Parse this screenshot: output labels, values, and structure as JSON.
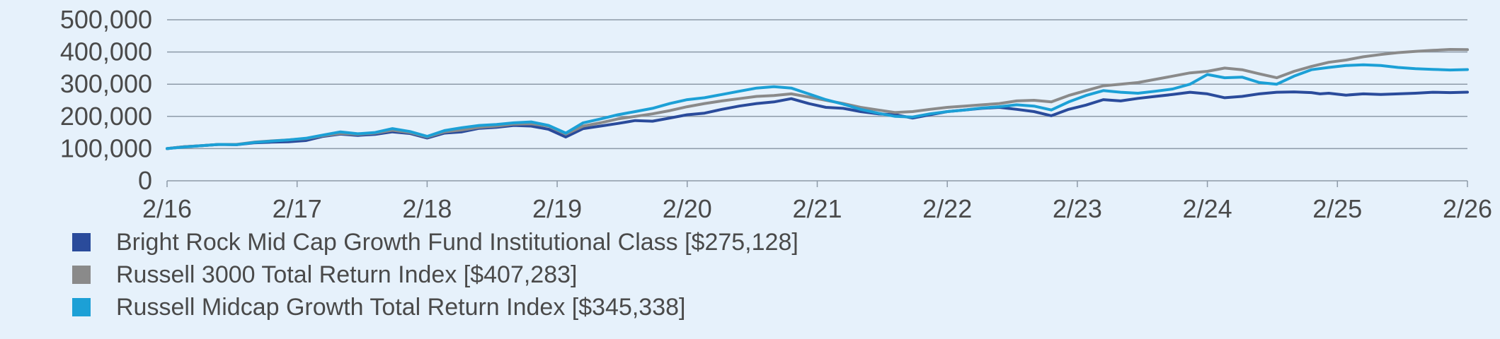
{
  "chart_data": {
    "type": "line",
    "ylim": [
      0,
      500000
    ],
    "y_ticks": [
      "0",
      "100,000",
      "200,000",
      "300,000",
      "400,000",
      "500,000"
    ],
    "y_tick_values": [
      0,
      100000,
      200000,
      300000,
      400000,
      500000
    ],
    "x_ticks": [
      "2/16",
      "2/17",
      "2/18",
      "2/19",
      "2/20",
      "2/21",
      "2/22",
      "2/23",
      "2/24",
      "2/25",
      "2/26"
    ],
    "grid": true,
    "legend_position": "bottom-left",
    "series": [
      {
        "name": "Bright Rock Mid Cap Growth Fund Institutional Class [$275,128]",
        "color": "#2a4b9b",
        "points": [
          [
            0,
            100000
          ],
          [
            4,
            106000
          ],
          [
            8,
            109000
          ],
          [
            12,
            113000
          ],
          [
            16,
            112000
          ],
          [
            20,
            118000
          ],
          [
            24,
            120000
          ],
          [
            28,
            121000
          ],
          [
            32,
            125000
          ],
          [
            36,
            138000
          ],
          [
            40,
            145000
          ],
          [
            44,
            141000
          ],
          [
            48,
            144000
          ],
          [
            52,
            152000
          ],
          [
            56,
            147000
          ],
          [
            60,
            133000
          ],
          [
            64,
            148000
          ],
          [
            68,
            152000
          ],
          [
            72,
            163000
          ],
          [
            76,
            166000
          ],
          [
            80,
            172000
          ],
          [
            84,
            170000
          ],
          [
            88,
            160000
          ],
          [
            92,
            136000
          ],
          [
            96,
            162000
          ],
          [
            100,
            170000
          ],
          [
            104,
            178000
          ],
          [
            108,
            187000
          ],
          [
            112,
            185000
          ],
          [
            116,
            195000
          ],
          [
            120,
            205000
          ],
          [
            124,
            210000
          ],
          [
            128,
            222000
          ],
          [
            132,
            232000
          ],
          [
            136,
            240000
          ],
          [
            140,
            245000
          ],
          [
            144,
            255000
          ],
          [
            148,
            240000
          ],
          [
            152,
            228000
          ],
          [
            156,
            225000
          ],
          [
            160,
            215000
          ],
          [
            164,
            208000
          ],
          [
            168,
            205000
          ],
          [
            172,
            195000
          ],
          [
            176,
            205000
          ],
          [
            180,
            215000
          ],
          [
            184,
            220000
          ],
          [
            188,
            225000
          ],
          [
            192,
            228000
          ],
          [
            196,
            222000
          ],
          [
            200,
            215000
          ],
          [
            204,
            202000
          ],
          [
            208,
            222000
          ],
          [
            212,
            235000
          ],
          [
            216,
            252000
          ],
          [
            220,
            248000
          ],
          [
            224,
            256000
          ],
          [
            228,
            262000
          ],
          [
            232,
            268000
          ],
          [
            236,
            275000
          ],
          [
            240,
            270000
          ],
          [
            244,
            258000
          ],
          [
            248,
            262000
          ],
          [
            252,
            270000
          ],
          [
            256,
            275000
          ],
          [
            260,
            276000
          ],
          [
            264,
            274000
          ],
          [
            266,
            270000
          ],
          [
            268,
            272000
          ],
          [
            272,
            266000
          ],
          [
            276,
            270000
          ],
          [
            280,
            268000
          ],
          [
            284,
            270000
          ],
          [
            288,
            272000
          ],
          [
            292,
            275000
          ],
          [
            296,
            274000
          ],
          [
            300,
            275128
          ]
        ]
      },
      {
        "name": "Russell 3000 Total Return Index [$407,283]",
        "color": "#8a8a8a",
        "points": [
          [
            0,
            100000
          ],
          [
            4,
            106000
          ],
          [
            8,
            109000
          ],
          [
            12,
            113000
          ],
          [
            16,
            113000
          ],
          [
            20,
            120000
          ],
          [
            24,
            124000
          ],
          [
            28,
            127000
          ],
          [
            32,
            131000
          ],
          [
            36,
            140000
          ],
          [
            40,
            147000
          ],
          [
            44,
            144000
          ],
          [
            48,
            148000
          ],
          [
            52,
            157000
          ],
          [
            56,
            150000
          ],
          [
            60,
            136000
          ],
          [
            64,
            152000
          ],
          [
            68,
            158000
          ],
          [
            72,
            166000
          ],
          [
            76,
            170000
          ],
          [
            80,
            176000
          ],
          [
            84,
            177000
          ],
          [
            88,
            170000
          ],
          [
            92,
            145000
          ],
          [
            96,
            170000
          ],
          [
            100,
            180000
          ],
          [
            104,
            192000
          ],
          [
            108,
            200000
          ],
          [
            112,
            208000
          ],
          [
            116,
            218000
          ],
          [
            120,
            230000
          ],
          [
            124,
            240000
          ],
          [
            128,
            248000
          ],
          [
            132,
            255000
          ],
          [
            136,
            262000
          ],
          [
            140,
            265000
          ],
          [
            144,
            270000
          ],
          [
            148,
            260000
          ],
          [
            152,
            250000
          ],
          [
            156,
            240000
          ],
          [
            160,
            228000
          ],
          [
            164,
            220000
          ],
          [
            168,
            212000
          ],
          [
            172,
            215000
          ],
          [
            176,
            222000
          ],
          [
            180,
            228000
          ],
          [
            184,
            232000
          ],
          [
            188,
            236000
          ],
          [
            192,
            240000
          ],
          [
            196,
            248000
          ],
          [
            200,
            250000
          ],
          [
            204,
            245000
          ],
          [
            208,
            265000
          ],
          [
            212,
            280000
          ],
          [
            216,
            295000
          ],
          [
            220,
            300000
          ],
          [
            224,
            305000
          ],
          [
            228,
            315000
          ],
          [
            232,
            325000
          ],
          [
            236,
            335000
          ],
          [
            240,
            340000
          ],
          [
            244,
            350000
          ],
          [
            248,
            345000
          ],
          [
            252,
            332000
          ],
          [
            256,
            320000
          ],
          [
            260,
            340000
          ],
          [
            264,
            355000
          ],
          [
            268,
            368000
          ],
          [
            272,
            375000
          ],
          [
            276,
            385000
          ],
          [
            280,
            392000
          ],
          [
            284,
            398000
          ],
          [
            288,
            402000
          ],
          [
            292,
            405000
          ],
          [
            296,
            408000
          ],
          [
            300,
            407283
          ]
        ]
      },
      {
        "name": "Russell Midcap Growth Total Return Index [$345,338]",
        "color": "#1ca0d6",
        "points": [
          [
            0,
            100000
          ],
          [
            4,
            105000
          ],
          [
            8,
            109000
          ],
          [
            12,
            113000
          ],
          [
            16,
            112000
          ],
          [
            20,
            119000
          ],
          [
            24,
            123000
          ],
          [
            28,
            127000
          ],
          [
            32,
            132000
          ],
          [
            36,
            142000
          ],
          [
            40,
            152000
          ],
          [
            44,
            146000
          ],
          [
            48,
            150000
          ],
          [
            52,
            162000
          ],
          [
            56,
            153000
          ],
          [
            60,
            138000
          ],
          [
            64,
            156000
          ],
          [
            68,
            165000
          ],
          [
            72,
            172000
          ],
          [
            76,
            175000
          ],
          [
            80,
            180000
          ],
          [
            84,
            183000
          ],
          [
            88,
            172000
          ],
          [
            92,
            148000
          ],
          [
            96,
            180000
          ],
          [
            100,
            192000
          ],
          [
            104,
            205000
          ],
          [
            108,
            215000
          ],
          [
            112,
            225000
          ],
          [
            116,
            240000
          ],
          [
            120,
            252000
          ],
          [
            124,
            258000
          ],
          [
            128,
            268000
          ],
          [
            132,
            278000
          ],
          [
            136,
            288000
          ],
          [
            140,
            292000
          ],
          [
            144,
            288000
          ],
          [
            148,
            270000
          ],
          [
            152,
            252000
          ],
          [
            156,
            238000
          ],
          [
            160,
            222000
          ],
          [
            164,
            210000
          ],
          [
            168,
            200000
          ],
          [
            172,
            198000
          ],
          [
            176,
            208000
          ],
          [
            180,
            215000
          ],
          [
            184,
            220000
          ],
          [
            188,
            226000
          ],
          [
            192,
            230000
          ],
          [
            196,
            236000
          ],
          [
            200,
            232000
          ],
          [
            204,
            220000
          ],
          [
            208,
            245000
          ],
          [
            212,
            265000
          ],
          [
            216,
            280000
          ],
          [
            220,
            275000
          ],
          [
            224,
            272000
          ],
          [
            228,
            278000
          ],
          [
            232,
            285000
          ],
          [
            236,
            300000
          ],
          [
            240,
            330000
          ],
          [
            244,
            320000
          ],
          [
            248,
            322000
          ],
          [
            252,
            305000
          ],
          [
            256,
            300000
          ],
          [
            260,
            325000
          ],
          [
            264,
            345000
          ],
          [
            268,
            352000
          ],
          [
            272,
            358000
          ],
          [
            276,
            360000
          ],
          [
            280,
            358000
          ],
          [
            284,
            352000
          ],
          [
            288,
            348000
          ],
          [
            292,
            346000
          ],
          [
            296,
            344000
          ],
          [
            300,
            345338
          ]
        ]
      }
    ]
  }
}
